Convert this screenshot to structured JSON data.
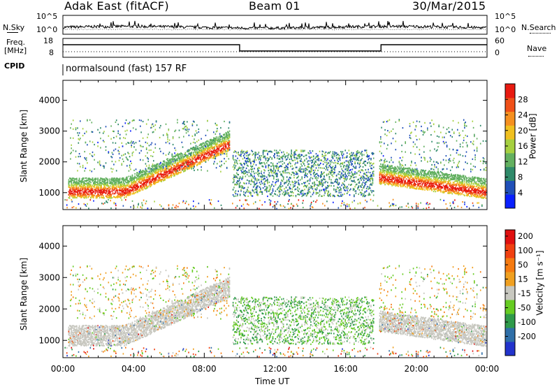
{
  "header": {
    "station": "Adak East (fitACF)",
    "beam": "Beam 01",
    "date": "30/Mar/2015"
  },
  "side_labels": {
    "nsky": "N.Sky",
    "nsearch": "N.Search",
    "freq_line1": "Freq.",
    "freq_line2": "[MHz]",
    "nave": "Nave",
    "cpid": "CPID",
    "power_cb": "Power [dB]",
    "velocity_cb": "Velocity [m s⁻¹]"
  },
  "noise_panel": {
    "left_ticks": [
      "10^5",
      "10^0"
    ],
    "right_ticks": [
      "10^5",
      "10^0"
    ]
  },
  "freq_panel": {
    "left_ticks": [
      "18",
      "8"
    ],
    "right_ticks": [
      "60",
      "0"
    ]
  },
  "cpid_text": "normalsound (fast) 157 RF",
  "chart_data": [
    {
      "type": "heatmap",
      "name": "power",
      "ylabel": "Slant Range [km]",
      "yticks": [
        1000,
        2000,
        3000,
        4000
      ],
      "ylim": [
        450,
        4650
      ],
      "xlim": [
        0,
        24
      ],
      "colorbar_label": "Power [dB]",
      "colorbar_ticks": [
        4,
        8,
        12,
        16,
        20,
        24,
        28
      ],
      "colorbar_range": [
        0,
        32
      ],
      "colors": [
        "#0a20ff",
        "#2050b8",
        "#2f8a6a",
        "#63b060",
        "#a6d040",
        "#f0c020",
        "#f59020",
        "#f05018",
        "#e81a10"
      ]
    },
    {
      "type": "heatmap",
      "name": "velocity",
      "ylabel": "Slant Range [km]",
      "yticks": [
        1000,
        2000,
        3000,
        4000
      ],
      "ylim": [
        450,
        4650
      ],
      "xlim": [
        0,
        24
      ],
      "xticks": [
        "00:00",
        "04:00",
        "08:00",
        "12:00",
        "16:00",
        "20:00",
        "00:00"
      ],
      "xlabel": "Time UT",
      "colorbar_label": "Velocity [m s⁻¹]",
      "colorbar_ticks": [
        "200",
        "100",
        "50",
        "15",
        "-15",
        "-50",
        "-100",
        "-200"
      ],
      "colors": [
        "#2233cc",
        "#2f6fa8",
        "#2f9a4a",
        "#66cc22",
        "#c8c8c0",
        "#f0a020",
        "#f57a10",
        "#f04010",
        "#e01010"
      ]
    }
  ]
}
